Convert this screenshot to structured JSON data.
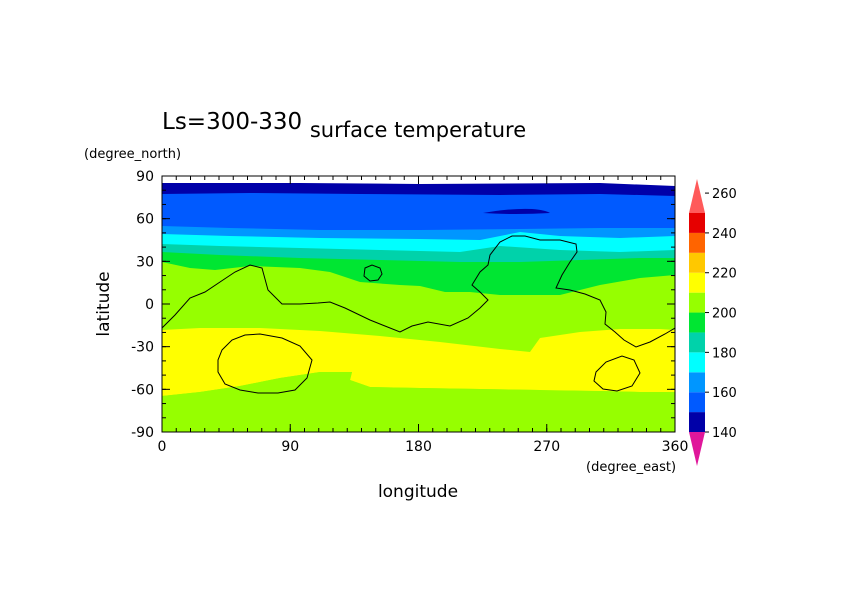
{
  "chart_data": {
    "type": "heatmap",
    "title": "surface temperature",
    "subtitle": "Ls=300-330",
    "xlabel": "longitude",
    "ylabel": "latitude",
    "x_units": "(degree_east)",
    "y_units": "(degree_north)",
    "xlim": [
      0,
      360
    ],
    "ylim": [
      -90,
      90
    ],
    "x_ticks": [
      "0",
      "90",
      "180",
      "270",
      "360"
    ],
    "y_ticks": [
      "90",
      "60",
      "30",
      "0",
      "-30",
      "-60",
      "-90"
    ],
    "colorbar": {
      "levels": [
        140,
        160,
        180,
        200,
        220,
        240,
        260
      ],
      "tick_labels": [
        "140",
        "160",
        "180",
        "200",
        "220",
        "240",
        "260"
      ],
      "colors": [
        "#e0179b",
        "#0000a8",
        "#005aff",
        "#0096ff",
        "#00ffff",
        "#00d2aa",
        "#00e632",
        "#96ff00",
        "#ffff00",
        "#ffc800",
        "#ff6400",
        "#e60000",
        "#ff5a5a"
      ]
    },
    "latitude_bands": [
      {
        "lat": [
          84,
          90
        ],
        "value": "none"
      },
      {
        "lat": [
          76,
          84
        ],
        "value": "140-150"
      },
      {
        "lat": [
          52,
          76
        ],
        "value": "150-160"
      },
      {
        "lat": [
          47,
          52
        ],
        "value": "160-170"
      },
      {
        "lat": [
          38,
          47
        ],
        "value": "170-180"
      },
      {
        "lat": [
          30,
          38
        ],
        "value": "180-190"
      },
      {
        "lat": [
          10,
          30
        ],
        "value": "190-200"
      },
      {
        "lat": [
          -20,
          10
        ],
        "value": "200-220"
      },
      {
        "lat": [
          -60,
          -20
        ],
        "value": "220-240"
      },
      {
        "lat": [
          -90,
          -60
        ],
        "value": "200-220"
      }
    ]
  }
}
